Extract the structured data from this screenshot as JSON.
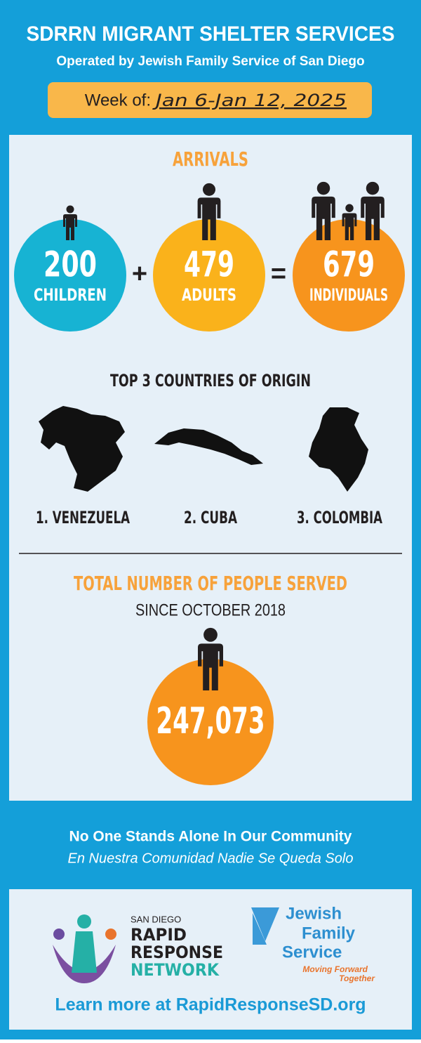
{
  "header": {
    "title": "SDRRN MIGRANT SHELTER SERVICES",
    "subtitle": "Operated by Jewish Family Service of San Diego",
    "week_label": "Week of:",
    "week_dates": "Jan 6-Jan 12, 2025"
  },
  "arrivals": {
    "heading": "ARRIVALS",
    "items": [
      {
        "number": 200,
        "label": "CHILDREN"
      },
      {
        "number": 479,
        "label": "ADULTS"
      },
      {
        "number": 679,
        "label": "INDIVIDUALS"
      }
    ],
    "plus": "+",
    "equals": "="
  },
  "countries": {
    "heading": "TOP 3 COUNTRIES OF ORIGIN",
    "items": [
      "1. VENEZUELA",
      "2. CUBA",
      "3. COLOMBIA"
    ]
  },
  "total": {
    "heading": "TOTAL NUMBER OF PEOPLE SERVED",
    "subheading": "SINCE OCTOBER 2018",
    "number": "247,073"
  },
  "footer": {
    "tagline": "No One Stands Alone In Our Community",
    "tagline_es": "En Nuestra Comunidad Nadie Se Queda Solo",
    "rrn": [
      "SAN DIEGO",
      "RAPID",
      "RESPONSE",
      "NETWORK"
    ],
    "jfs": [
      "Jewish",
      "Family",
      "Service"
    ],
    "jfs_slogan": [
      "Moving Forward",
      "Together"
    ],
    "link": "Learn more at RapidResponseSD.org"
  }
}
